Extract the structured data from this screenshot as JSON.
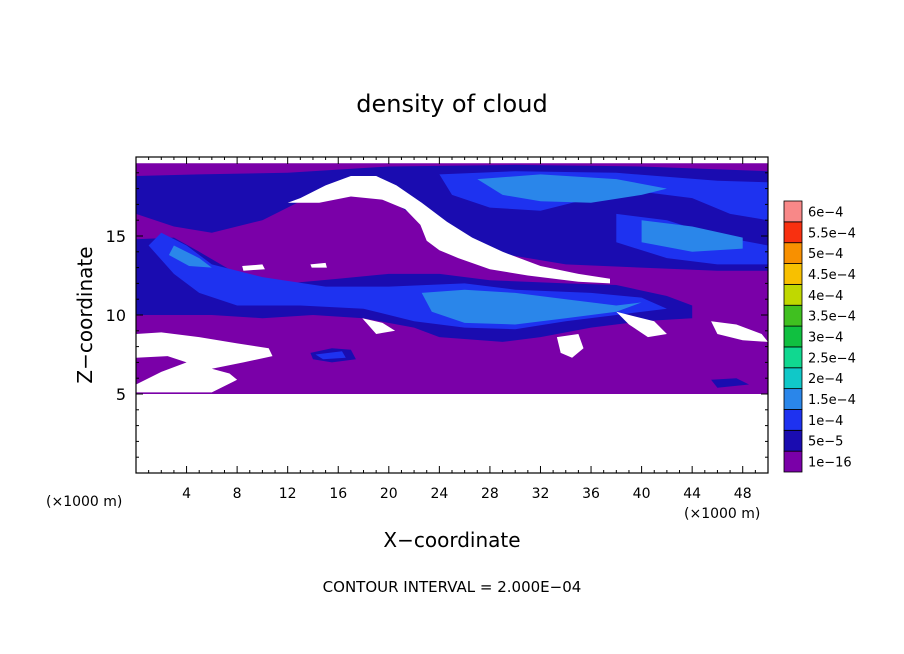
{
  "chart_data": {
    "type": "heatmap",
    "title": "density of cloud",
    "xlabel": "X−coordinate",
    "ylabel": "Z−coordinate",
    "x_unit_left": "(×1000 m)",
    "x_unit_right": "(×1000 m)",
    "xlim": [
      0,
      50
    ],
    "ylim": [
      0,
      20
    ],
    "x_ticks": [
      4,
      8,
      12,
      16,
      20,
      24,
      28,
      32,
      36,
      40,
      44,
      48
    ],
    "x_tick_labels": [
      "4",
      "8",
      "12",
      "16",
      "20",
      "24",
      "28",
      "32",
      "36",
      "40",
      "44",
      "48"
    ],
    "y_ticks": [
      5,
      10,
      15
    ],
    "y_tick_labels": [
      "5",
      "10",
      "15"
    ],
    "footer": "CONTOUR INTERVAL = 2.000E−04",
    "colorbar": {
      "levels": [
        "1e−16",
        "5e−5",
        "1e−4",
        "1.5e−4",
        "2e−4",
        "2.5e−4",
        "3e−4",
        "3.5e−4",
        "4e−4",
        "4.5e−4",
        "5e−4",
        "5.5e−4",
        "6e−4"
      ],
      "colors": [
        "#7a00a8",
        "#1a0cb0",
        "#1e32f0",
        "#2a86ea",
        "#10c8c8",
        "#10d890",
        "#10c040",
        "#40c020",
        "#c0d800",
        "#f8c000",
        "#f89000",
        "#f83010",
        "#f88888"
      ]
    },
    "fill_regions": [
      {
        "level": 0,
        "polygon": [
          [
            0,
            5
          ],
          [
            50,
            5
          ],
          [
            50,
            19.6
          ],
          [
            0,
            19.6
          ]
        ]
      },
      {
        "level": 1,
        "polygon": [
          [
            0,
            18.8
          ],
          [
            5,
            18.9
          ],
          [
            12,
            19.0
          ],
          [
            20,
            19.4
          ],
          [
            30,
            19.5
          ],
          [
            40,
            19.4
          ],
          [
            50,
            19.1
          ],
          [
            50,
            12.8
          ],
          [
            46,
            12.8
          ],
          [
            40,
            13.0
          ],
          [
            34,
            13.2
          ],
          [
            28,
            14.0
          ],
          [
            24,
            15.2
          ],
          [
            21,
            16.8
          ],
          [
            20,
            17.8
          ],
          [
            18,
            18.6
          ],
          [
            14,
            17.6
          ],
          [
            10,
            16.0
          ],
          [
            6,
            15.2
          ],
          [
            3,
            15.6
          ],
          [
            0,
            16.4
          ]
        ]
      },
      {
        "level": 1,
        "polygon": [
          [
            0,
            14.8
          ],
          [
            3,
            14.9
          ],
          [
            5,
            14.0
          ],
          [
            8,
            12.6
          ],
          [
            12,
            12.0
          ],
          [
            16,
            12.3
          ],
          [
            20,
            12.6
          ],
          [
            24,
            12.6
          ],
          [
            28,
            12.2
          ],
          [
            34,
            12.0
          ],
          [
            38,
            11.9
          ],
          [
            42,
            11.2
          ],
          [
            44,
            10.6
          ],
          [
            44,
            9.8
          ],
          [
            40,
            9.6
          ],
          [
            36,
            9.2
          ],
          [
            32,
            8.6
          ],
          [
            29,
            8.3
          ],
          [
            24,
            8.6
          ],
          [
            22,
            9.2
          ],
          [
            18,
            9.8
          ],
          [
            14,
            10.0
          ],
          [
            10,
            9.8
          ],
          [
            6,
            10.0
          ],
          [
            2,
            10.0
          ],
          [
            0,
            10.0
          ]
        ]
      },
      {
        "level": 1,
        "polygon": [
          [
            13.8,
            7.6
          ],
          [
            15.5,
            7.9
          ],
          [
            17,
            7.8
          ],
          [
            17.4,
            7.2
          ],
          [
            15.5,
            7.0
          ],
          [
            14,
            7.2
          ]
        ]
      },
      {
        "level": 1,
        "polygon": [
          [
            45.5,
            5.9
          ],
          [
            47.5,
            6.0
          ],
          [
            48.5,
            5.6
          ],
          [
            46,
            5.4
          ]
        ]
      },
      {
        "level": 2,
        "polygon": [
          [
            24,
            18.9
          ],
          [
            30,
            19.1
          ],
          [
            38,
            19.0
          ],
          [
            46,
            18.5
          ],
          [
            50,
            18.4
          ],
          [
            50,
            16.0
          ],
          [
            47,
            16.4
          ],
          [
            44,
            17.4
          ],
          [
            40,
            17.8
          ],
          [
            36,
            17.4
          ],
          [
            32,
            16.6
          ],
          [
            28,
            16.8
          ],
          [
            25,
            17.6
          ]
        ]
      },
      {
        "level": 2,
        "polygon": [
          [
            38,
            16.4
          ],
          [
            42,
            16.0
          ],
          [
            46,
            15.0
          ],
          [
            50,
            14.4
          ],
          [
            50,
            13.2
          ],
          [
            46,
            13.2
          ],
          [
            42,
            13.6
          ],
          [
            38,
            14.6
          ]
        ]
      },
      {
        "level": 2,
        "polygon": [
          [
            2,
            15.2
          ],
          [
            4,
            14.4
          ],
          [
            6,
            13.2
          ],
          [
            10,
            12.4
          ],
          [
            15,
            11.8
          ],
          [
            20,
            11.8
          ],
          [
            26,
            12.0
          ],
          [
            30,
            11.6
          ],
          [
            36,
            11.4
          ],
          [
            40,
            11.1
          ],
          [
            42,
            10.4
          ],
          [
            38,
            10.0
          ],
          [
            34,
            9.6
          ],
          [
            30,
            9.1
          ],
          [
            26,
            9.2
          ],
          [
            22,
            9.6
          ],
          [
            18,
            10.4
          ],
          [
            13,
            10.6
          ],
          [
            8,
            10.6
          ],
          [
            5,
            11.4
          ],
          [
            3,
            12.6
          ],
          [
            1,
            14.4
          ]
        ]
      },
      {
        "level": 2,
        "polygon": [
          [
            14.2,
            7.5
          ],
          [
            16.3,
            7.7
          ],
          [
            16.6,
            7.3
          ],
          [
            14.8,
            7.2
          ]
        ]
      },
      {
        "level": 3,
        "polygon": [
          [
            27,
            18.6
          ],
          [
            32,
            18.9
          ],
          [
            38,
            18.6
          ],
          [
            42,
            18.0
          ],
          [
            40,
            17.6
          ],
          [
            36,
            17.1
          ],
          [
            32,
            17.2
          ],
          [
            29,
            17.6
          ]
        ]
      },
      {
        "level": 3,
        "polygon": [
          [
            40,
            16.0
          ],
          [
            44,
            15.6
          ],
          [
            48,
            14.9
          ],
          [
            48,
            14.2
          ],
          [
            44,
            14.0
          ],
          [
            40,
            14.6
          ]
        ]
      },
      {
        "level": 3,
        "polygon": [
          [
            22.6,
            11.4
          ],
          [
            26,
            11.6
          ],
          [
            30,
            11.4
          ],
          [
            34,
            11.0
          ],
          [
            38,
            10.6
          ],
          [
            40,
            10.8
          ],
          [
            38,
            10.2
          ],
          [
            34,
            9.8
          ],
          [
            30,
            9.4
          ],
          [
            26,
            9.5
          ],
          [
            23.4,
            10.2
          ]
        ]
      },
      {
        "level": 3,
        "polygon": [
          [
            3,
            14.4
          ],
          [
            5,
            13.6
          ],
          [
            6,
            13.0
          ],
          [
            4.2,
            13.1
          ],
          [
            2.6,
            13.8
          ]
        ]
      }
    ],
    "blank_regions": [
      {
        "polygon": [
          [
            0,
            0
          ],
          [
            50,
            0
          ],
          [
            50,
            5
          ],
          [
            0,
            5
          ]
        ]
      },
      {
        "polygon": [
          [
            12,
            17.1
          ],
          [
            13,
            17.4
          ],
          [
            15,
            18.2
          ],
          [
            17,
            18.8
          ],
          [
            19,
            18.8
          ],
          [
            20.6,
            18.2
          ],
          [
            22.6,
            17.1
          ],
          [
            24.6,
            15.9
          ],
          [
            26.6,
            14.9
          ],
          [
            29,
            14.0
          ],
          [
            32,
            13.1
          ],
          [
            35,
            12.6
          ],
          [
            37.5,
            12.3
          ],
          [
            37.5,
            12.0
          ],
          [
            35,
            12.1
          ],
          [
            31,
            12.5
          ],
          [
            28,
            12.9
          ],
          [
            25.5,
            13.6
          ],
          [
            24,
            14.1
          ],
          [
            23,
            14.7
          ],
          [
            22.5,
            15.7
          ],
          [
            21.3,
            16.7
          ],
          [
            19.5,
            17.3
          ],
          [
            17,
            17.5
          ],
          [
            14.5,
            17.1
          ]
        ]
      },
      {
        "polygon": [
          [
            0,
            8.8
          ],
          [
            2,
            8.9
          ],
          [
            5,
            8.6
          ],
          [
            8,
            8.2
          ],
          [
            10.5,
            7.9
          ],
          [
            10.8,
            7.4
          ],
          [
            8.5,
            7.0
          ],
          [
            6,
            6.6
          ],
          [
            7.4,
            6.3
          ],
          [
            8,
            5.9
          ],
          [
            6,
            5.1
          ],
          [
            3,
            5.1
          ],
          [
            0,
            5.1
          ],
          [
            0,
            5.6
          ],
          [
            2,
            6.4
          ],
          [
            4,
            7.0
          ],
          [
            2.5,
            7.4
          ],
          [
            0,
            7.3
          ]
        ]
      },
      {
        "polygon": [
          [
            38,
            10.2
          ],
          [
            41,
            9.6
          ],
          [
            42,
            8.8
          ],
          [
            40.5,
            8.6
          ],
          [
            39,
            9.4
          ]
        ]
      },
      {
        "polygon": [
          [
            45.5,
            9.6
          ],
          [
            47.5,
            9.4
          ],
          [
            49.5,
            8.8
          ],
          [
            50,
            8.3
          ],
          [
            48,
            8.4
          ],
          [
            46,
            8.8
          ]
        ]
      },
      {
        "polygon": [
          [
            33.3,
            8.6
          ],
          [
            35,
            8.8
          ],
          [
            35.4,
            7.9
          ],
          [
            34.5,
            7.3
          ],
          [
            33.6,
            7.6
          ]
        ]
      },
      {
        "polygon": [
          [
            17.9,
            9.8
          ],
          [
            19.5,
            9.5
          ],
          [
            20.5,
            9.0
          ],
          [
            19,
            8.8
          ]
        ]
      },
      {
        "polygon": [
          [
            8.4,
            13.1
          ],
          [
            10,
            13.2
          ],
          [
            10.2,
            12.9
          ],
          [
            8.5,
            12.8
          ]
        ]
      },
      {
        "polygon": [
          [
            13.8,
            13.2
          ],
          [
            15,
            13.3
          ],
          [
            15.1,
            13.0
          ],
          [
            13.9,
            13.0
          ]
        ]
      }
    ]
  }
}
